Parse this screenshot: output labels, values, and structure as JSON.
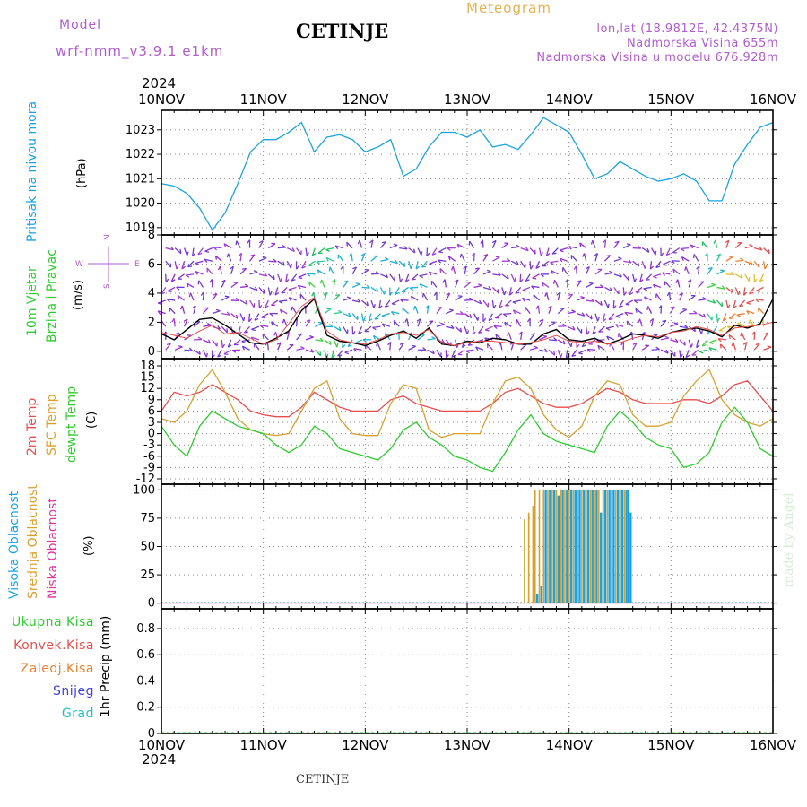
{
  "header": {
    "model_label": "Model",
    "model_name": "wrf-nmm_v3.9.1  e1km",
    "station": "CETINJE",
    "meteogram_label": "Meteogram",
    "lonlat": "lon,lat (18.9812E, 42.4375N)",
    "altitude": "Nadmorska Visina 655m",
    "model_altitude": "Nadmorska Visina u modelu 676.928m"
  },
  "footer": {
    "station": "CETINJE",
    "watermark": "made by Angel"
  },
  "time_axis": {
    "year": "2024",
    "labels": [
      "10NOV",
      "11NOV",
      "12NOV",
      "13NOV",
      "14NOV",
      "15NOV",
      "16NOV"
    ]
  },
  "panels": {
    "pressure": {
      "ylabel": "Pritisak na nivou mora",
      "unit": "(hPa)",
      "ticks": [
        "1019",
        "1020",
        "1021",
        "1022",
        "1023"
      ],
      "color": "#1aa3e0"
    },
    "wind": {
      "ylabel1": "10m Vjetar",
      "ylabel2": "Brzina i Pravac",
      "unit": "(m/s)",
      "ticks": [
        "0",
        "2",
        "4",
        "6",
        "8"
      ],
      "compass": {
        "n": "N",
        "w": "W",
        "e": "E",
        "s": "S"
      }
    },
    "temp": {
      "label_2m": "2m Temp",
      "label_sfc": "SFC Temp",
      "label_dew": "dewpt Temp",
      "unit": "(C)",
      "ticks": [
        "18",
        "15",
        "12",
        "9",
        "6",
        "3",
        "0",
        "-3",
        "-6",
        "-9",
        "-12"
      ],
      "colors": {
        "t2m": "#e84d4d",
        "sfc": "#d9a030",
        "dew": "#2ecc2e"
      }
    },
    "cloud": {
      "label_high": "Visoka Oblacnost",
      "label_mid": "Srednja Oblacnost",
      "label_low": "Niska Oblacnost",
      "unit": "(%)",
      "ticks": [
        "0",
        "25",
        "50",
        "75",
        "100"
      ],
      "colors": {
        "high": "#1aa3e0",
        "mid": "#d9a030",
        "low": "#e0349a"
      }
    },
    "precip": {
      "legend": [
        "Ukupna Kisa",
        "Konvek.Kisa",
        "Zaledj.Kisa",
        "Snijeg",
        "Grad"
      ],
      "legend_colors": [
        "#2ecc2e",
        "#e84d4d",
        "#f08030",
        "#4040e0",
        "#20c0c0"
      ],
      "unit": "1hr Precip (mm)",
      "ticks": [
        "0",
        "0.2",
        "0.4",
        "0.6",
        "0.8"
      ]
    }
  },
  "chart_data": [
    {
      "type": "line",
      "title": "Pritisak na nivou mora",
      "ylabel": "(hPa)",
      "ylim": [
        1018.7,
        1023.8
      ],
      "x_hours": [
        0,
        3,
        6,
        9,
        12,
        15,
        18,
        21,
        24,
        27,
        30,
        33,
        36,
        39,
        42,
        45,
        48,
        51,
        54,
        57,
        60,
        63,
        66,
        69,
        72,
        75,
        78,
        81,
        84,
        87,
        90,
        93,
        96,
        99,
        102,
        105,
        108,
        111,
        114,
        117,
        120,
        123,
        126,
        129,
        132,
        135,
        138,
        141,
        144
      ],
      "series": [
        {
          "values": [
            1020.8,
            1020.7,
            1020.4,
            1019.8,
            1018.9,
            1019.6,
            1020.8,
            1022.1,
            1022.6,
            1022.6,
            1022.9,
            1023.3,
            1022.1,
            1022.7,
            1022.8,
            1022.6,
            1022.1,
            1022.3,
            1022.6,
            1021.1,
            1021.4,
            1022.3,
            1022.9,
            1022.9,
            1022.7,
            1023.0,
            1022.3,
            1022.4,
            1022.2,
            1022.8,
            1023.5,
            1023.2,
            1022.9,
            1022.0,
            1021.0,
            1021.2,
            1021.7,
            1021.4,
            1021.1,
            1020.9,
            1021.0,
            1021.2,
            1020.9,
            1020.1,
            1020.1,
            1021.6,
            1022.4,
            1023.1,
            1023.3
          ],
          "color": "#1aa3e0"
        }
      ],
      "grid": true
    },
    {
      "type": "line",
      "title": "10m Vjetar Brzina i Pravac",
      "ylabel": "(m/s)",
      "ylim": [
        -0.5,
        8
      ],
      "x_hours": [
        0,
        3,
        6,
        9,
        12,
        15,
        18,
        21,
        24,
        27,
        30,
        33,
        36,
        39,
        42,
        45,
        48,
        51,
        54,
        57,
        60,
        63,
        66,
        69,
        72,
        75,
        78,
        81,
        84,
        87,
        90,
        93,
        96,
        99,
        102,
        105,
        108,
        111,
        114,
        117,
        120,
        123,
        126,
        129,
        132,
        135,
        138,
        141,
        144
      ],
      "series": [
        {
          "values": [
            1.2,
            0.8,
            1.5,
            2.2,
            2.3,
            1.8,
            1.2,
            0.6,
            0.5,
            0.9,
            1.4,
            2.8,
            3.6,
            1.1,
            0.7,
            0.6,
            0.4,
            0.7,
            1.1,
            1.4,
            0.9,
            1.6,
            0.5,
            0.4,
            0.7,
            0.6,
            0.9,
            0.8,
            0.5,
            0.5,
            1.2,
            1.5,
            0.8,
            0.7,
            0.9,
            0.5,
            0.8,
            1.2,
            1.1,
            0.9,
            1.3,
            1.5,
            1.6,
            1.4,
            1.0,
            1.8,
            1.6,
            1.9,
            3.6
          ],
          "color": "#000000"
        },
        {
          "values": [
            1.3,
            1.1,
            0.9,
            1.4,
            1.8,
            1.2,
            1.3,
            0.9,
            0.5,
            0.8,
            1.9,
            3.1,
            3.7,
            1.4,
            0.8,
            0.6,
            0.5,
            0.8,
            1.2,
            1.3,
            1.1,
            1.5,
            0.6,
            0.4,
            0.6,
            0.7,
            0.7,
            0.6,
            0.5,
            0.6,
            0.8,
            1.1,
            0.7,
            0.6,
            0.7,
            0.5,
            0.6,
            0.9,
            1.1,
            1.0,
            1.3,
            1.4,
            1.7,
            1.5,
            1.1,
            1.6,
            1.7,
            1.8,
            2.0
          ],
          "color": "#e84d4d"
        }
      ],
      "grid": true
    },
    {
      "type": "line",
      "title": "2m Temp / SFC Temp / dewpt Temp",
      "ylabel": "(C)",
      "ylim": [
        -12,
        18
      ],
      "x_hours": [
        0,
        3,
        6,
        9,
        12,
        15,
        18,
        21,
        24,
        27,
        30,
        33,
        36,
        39,
        42,
        45,
        48,
        51,
        54,
        57,
        60,
        63,
        66,
        69,
        72,
        75,
        78,
        81,
        84,
        87,
        90,
        93,
        96,
        99,
        102,
        105,
        108,
        111,
        114,
        117,
        120,
        123,
        126,
        129,
        132,
        135,
        138,
        141,
        144
      ],
      "series": [
        {
          "name": "2m Temp",
          "values": [
            6,
            11,
            10,
            11,
            13,
            11,
            9,
            6,
            5,
            4.5,
            4.5,
            7,
            11,
            9,
            7,
            6,
            6,
            6,
            9,
            10,
            8,
            7,
            6,
            6,
            6,
            6,
            8,
            11,
            12,
            10,
            8,
            7,
            7,
            8,
            10,
            12,
            11,
            9,
            8,
            8,
            8,
            9,
            9,
            8,
            10,
            13,
            14,
            10,
            6
          ],
          "color": "#e84d4d"
        },
        {
          "name": "SFC Temp",
          "values": [
            4,
            3,
            6,
            13,
            17,
            11,
            4,
            1,
            0,
            -0.5,
            0,
            6,
            12,
            14,
            4,
            0,
            -0.5,
            -0.5,
            8,
            13,
            12,
            1,
            -1,
            0,
            0,
            0,
            8,
            14,
            15,
            12,
            5,
            1,
            -1,
            2,
            10,
            14,
            13,
            5,
            2,
            2,
            3,
            10,
            14,
            17,
            9,
            5,
            3,
            2,
            4
          ],
          "color": "#d9a030"
        },
        {
          "name": "dewpt Temp",
          "values": [
            2,
            -3,
            -6,
            2,
            6,
            4,
            2,
            1,
            0,
            -3,
            -5,
            -3,
            2,
            0,
            -4,
            -5,
            -6,
            -7,
            -4,
            1,
            3,
            -1,
            -3,
            -6,
            -7,
            -9,
            -10,
            -5,
            1,
            5,
            0,
            -2,
            -3,
            -4,
            -5,
            2,
            6,
            3,
            -1,
            -3,
            -4,
            -9,
            -8,
            -5,
            3,
            7,
            3,
            -4,
            -6
          ],
          "color": "#2ecc2e"
        }
      ],
      "grid": true
    },
    {
      "type": "bar",
      "title": "Visoka / Srednja / Niska Oblacnost",
      "ylabel": "(%)",
      "ylim": [
        -5,
        105
      ],
      "x_hours_range": [
        0,
        144
      ],
      "bars": [
        {
          "h": 85.5,
          "series": "mid",
          "value": 74
        },
        {
          "h": 86.5,
          "series": "mid",
          "value": 80
        },
        {
          "h": 87.5,
          "series": "mid",
          "value": 86
        },
        {
          "h": 88.0,
          "series": "mid",
          "value": 100
        },
        {
          "h": 88.5,
          "series": "high",
          "value": 8
        },
        {
          "h": 89.0,
          "series": "mid",
          "value": 100
        },
        {
          "h": 89.5,
          "series": "high",
          "value": 15
        },
        {
          "h": 90.0,
          "series": "mid",
          "value": 100
        },
        {
          "h": 90.5,
          "series": "high",
          "value": 100
        },
        {
          "h": 91.0,
          "series": "mid",
          "value": 100
        },
        {
          "h": 91.5,
          "series": "high",
          "value": 100
        },
        {
          "h": 92.0,
          "series": "mid",
          "value": 100
        },
        {
          "h": 92.5,
          "series": "high",
          "value": 100
        },
        {
          "h": 93.0,
          "series": "mid",
          "value": 100
        },
        {
          "h": 93.5,
          "series": "high",
          "value": 95
        },
        {
          "h": 94.0,
          "series": "mid",
          "value": 100
        },
        {
          "h": 94.5,
          "series": "high",
          "value": 100
        },
        {
          "h": 95.0,
          "series": "mid",
          "value": 100
        },
        {
          "h": 95.5,
          "series": "high",
          "value": 100
        },
        {
          "h": 96.0,
          "series": "mid",
          "value": 100
        },
        {
          "h": 96.5,
          "series": "high",
          "value": 100
        },
        {
          "h": 97.0,
          "series": "mid",
          "value": 100
        },
        {
          "h": 97.5,
          "series": "high",
          "value": 100
        },
        {
          "h": 98.0,
          "series": "mid",
          "value": 100
        },
        {
          "h": 98.5,
          "series": "high",
          "value": 100
        },
        {
          "h": 99.0,
          "series": "mid",
          "value": 100
        },
        {
          "h": 99.5,
          "series": "high",
          "value": 100
        },
        {
          "h": 100.0,
          "series": "mid",
          "value": 100
        },
        {
          "h": 100.5,
          "series": "high",
          "value": 100
        },
        {
          "h": 101.0,
          "series": "mid",
          "value": 100
        },
        {
          "h": 101.5,
          "series": "high",
          "value": 100
        },
        {
          "h": 102.0,
          "series": "mid",
          "value": 100
        },
        {
          "h": 102.5,
          "series": "high",
          "value": 100
        },
        {
          "h": 103.0,
          "series": "mid",
          "value": 100
        },
        {
          "h": 103.5,
          "series": "high",
          "value": 80
        },
        {
          "h": 104.0,
          "series": "mid",
          "value": 100
        },
        {
          "h": 104.5,
          "series": "high",
          "value": 100
        },
        {
          "h": 105.0,
          "series": "mid",
          "value": 100
        },
        {
          "h": 105.5,
          "series": "high",
          "value": 100
        },
        {
          "h": 106.0,
          "series": "mid",
          "value": 100
        },
        {
          "h": 106.5,
          "series": "high",
          "value": 100
        },
        {
          "h": 107.0,
          "series": "mid",
          "value": 100
        },
        {
          "h": 107.5,
          "series": "high",
          "value": 100
        },
        {
          "h": 108.0,
          "series": "mid",
          "value": 100
        },
        {
          "h": 108.5,
          "series": "high",
          "value": 100
        },
        {
          "h": 109.0,
          "series": "mid",
          "value": 100
        },
        {
          "h": 109.5,
          "series": "high",
          "value": 100
        },
        {
          "h": 110.0,
          "series": "high",
          "value": 100
        },
        {
          "h": 110.5,
          "series": "high",
          "value": 80
        }
      ],
      "grid": true
    },
    {
      "type": "bar",
      "title": "1hr Precip",
      "ylabel": "1hr Precip (mm)",
      "ylim": [
        0,
        0.95
      ],
      "bars": [],
      "grid": true
    }
  ]
}
